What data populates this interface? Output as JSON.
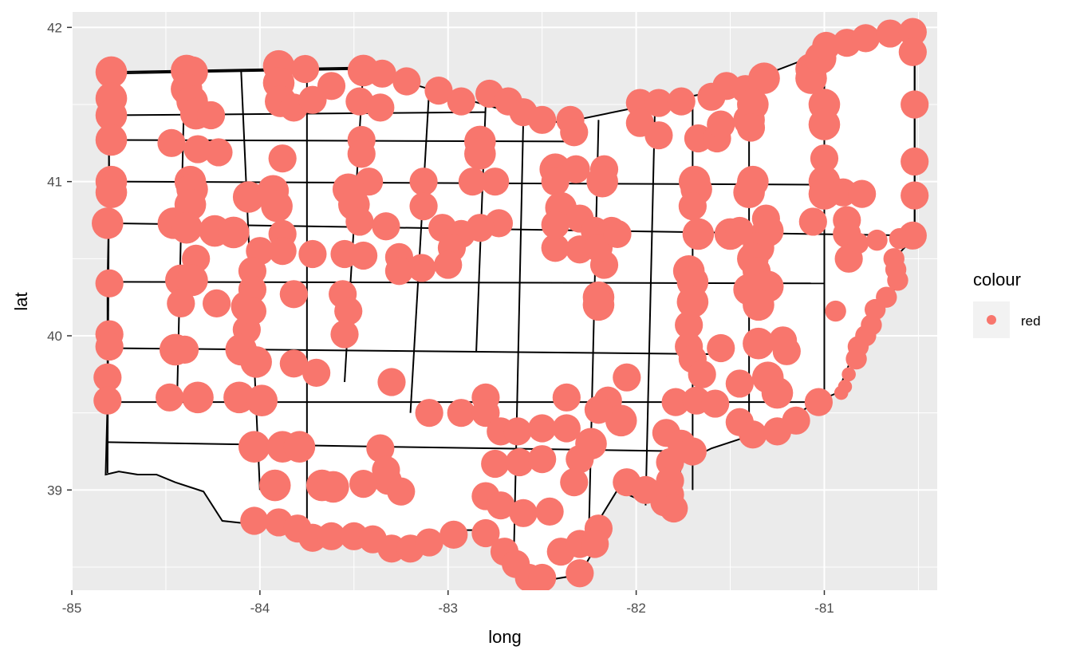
{
  "chart_data": {
    "type": "scatter",
    "title": "",
    "xlabel": "long",
    "ylabel": "lat",
    "xlim": [
      -85.0,
      -80.4
    ],
    "ylim": [
      38.35,
      42.1
    ],
    "x_ticks": [
      -85,
      -84,
      -83,
      -82,
      -81
    ],
    "y_ticks": [
      39,
      40,
      41,
      42
    ],
    "x_tick_labels": [
      "-85",
      "-84",
      "-83",
      "-82",
      "-81"
    ],
    "y_tick_labels": [
      "39",
      "40",
      "41",
      "42"
    ],
    "grid": true,
    "panel_background": "#ebebeb",
    "point_color": "#F8766D",
    "legend": {
      "title": "colour",
      "labels": [
        "red"
      ],
      "placement": "right"
    },
    "county_lines": [
      [
        [
          -84.82,
          41.71
        ],
        [
          -83.46,
          41.74
        ]
      ],
      [
        [
          -84.8,
          41.43
        ],
        [
          -82.8,
          41.45
        ]
      ],
      [
        [
          -84.8,
          41.27
        ],
        [
          -82.35,
          41.26
        ]
      ],
      [
        [
          -84.8,
          41.0
        ],
        [
          -81.0,
          40.98
        ]
      ],
      [
        [
          -84.8,
          40.73
        ],
        [
          -80.52,
          40.65
        ]
      ],
      [
        [
          -84.81,
          40.35
        ],
        [
          -81.0,
          40.34
        ]
      ],
      [
        [
          -84.8,
          39.92
        ],
        [
          -81.5,
          39.88
        ]
      ],
      [
        [
          -84.8,
          39.57
        ],
        [
          -81.0,
          39.57
        ]
      ],
      [
        [
          -84.81,
          39.31
        ],
        [
          -83.3,
          39.28
        ]
      ],
      [
        [
          -83.3,
          39.28
        ],
        [
          -81.7,
          39.25
        ]
      ],
      [
        [
          -84.8,
          41.71
        ],
        [
          -84.81,
          39.11
        ]
      ],
      [
        [
          -84.4,
          41.71
        ],
        [
          -84.44,
          39.6
        ]
      ],
      [
        [
          -84.1,
          41.72
        ],
        [
          -84.0,
          39.0
        ]
      ],
      [
        [
          -83.75,
          41.72
        ],
        [
          -83.75,
          38.7
        ]
      ],
      [
        [
          -83.45,
          41.74
        ],
        [
          -83.55,
          39.7
        ]
      ],
      [
        [
          -83.1,
          41.6
        ],
        [
          -83.2,
          39.5
        ]
      ],
      [
        [
          -82.8,
          41.5
        ],
        [
          -82.85,
          39.9
        ]
      ],
      [
        [
          -82.6,
          41.4
        ],
        [
          -82.65,
          38.6
        ]
      ],
      [
        [
          -82.2,
          41.4
        ],
        [
          -82.25,
          38.8
        ]
      ],
      [
        [
          -81.9,
          41.5
        ],
        [
          -81.95,
          38.9
        ]
      ],
      [
        [
          -81.7,
          41.5
        ],
        [
          -81.7,
          39.0
        ]
      ],
      [
        [
          -81.4,
          41.6
        ],
        [
          -81.4,
          39.4
        ]
      ],
      [
        [
          -81.0,
          41.9
        ],
        [
          -81.0,
          39.5
        ]
      ],
      [
        [
          -80.52,
          41.98
        ],
        [
          -80.52,
          40.64
        ]
      ]
    ],
    "points": [
      [
        -84.79,
        41.71,
        9
      ],
      [
        -84.79,
        41.54,
        9
      ],
      [
        -84.79,
        41.43,
        9
      ],
      [
        -84.79,
        41.27,
        9
      ],
      [
        -84.79,
        41.0,
        9
      ],
      [
        -84.79,
        40.93,
        9
      ],
      [
        -84.81,
        40.73,
        9
      ],
      [
        -84.8,
        40.34,
        8
      ],
      [
        -84.8,
        40.01,
        8
      ],
      [
        -84.8,
        39.93,
        8
      ],
      [
        -84.81,
        39.73,
        8
      ],
      [
        -84.81,
        39.58,
        8
      ],
      [
        -84.39,
        41.72,
        9
      ],
      [
        -84.36,
        41.71,
        9
      ],
      [
        -84.39,
        41.6,
        9
      ],
      [
        -84.36,
        41.52,
        9
      ],
      [
        -84.34,
        41.44,
        9
      ],
      [
        -84.26,
        41.43,
        8
      ],
      [
        -84.47,
        41.25,
        8
      ],
      [
        -84.33,
        41.21,
        8
      ],
      [
        -84.22,
        41.19,
        8
      ],
      [
        -84.37,
        41.0,
        9
      ],
      [
        -84.36,
        40.95,
        9
      ],
      [
        -84.37,
        40.85,
        9
      ],
      [
        -84.46,
        40.73,
        9
      ],
      [
        -84.39,
        40.7,
        9
      ],
      [
        -84.34,
        40.5,
        8
      ],
      [
        -84.24,
        40.68,
        9
      ],
      [
        -84.14,
        40.67,
        9
      ],
      [
        -84.06,
        40.9,
        9
      ],
      [
        -83.93,
        40.94,
        9
      ],
      [
        -83.91,
        40.84,
        9
      ],
      [
        -84.42,
        40.36,
        9
      ],
      [
        -84.36,
        40.36,
        9
      ],
      [
        -84.42,
        40.21,
        8
      ],
      [
        -84.23,
        40.21,
        8
      ],
      [
        -84.07,
        40.19,
        9
      ],
      [
        -84.07,
        40.04,
        8
      ],
      [
        -84.1,
        39.91,
        9
      ],
      [
        -84.02,
        39.83,
        9
      ],
      [
        -84.45,
        39.91,
        9
      ],
      [
        -84.4,
        39.91,
        8
      ],
      [
        -84.48,
        39.6,
        8
      ],
      [
        -84.33,
        39.6,
        9
      ],
      [
        -84.11,
        39.6,
        9
      ],
      [
        -83.99,
        39.58,
        9
      ],
      [
        -84.03,
        39.28,
        9
      ],
      [
        -83.88,
        39.28,
        9
      ],
      [
        -83.79,
        39.28,
        9
      ],
      [
        -83.92,
        39.03,
        9
      ],
      [
        -83.67,
        39.03,
        9
      ],
      [
        -83.61,
        39.02,
        9
      ],
      [
        -84.03,
        38.8,
        8
      ],
      [
        -83.9,
        38.79,
        8
      ],
      [
        -83.8,
        38.75,
        8
      ],
      [
        -83.72,
        38.69,
        8
      ],
      [
        -83.62,
        38.7,
        8
      ],
      [
        -83.5,
        38.7,
        8
      ],
      [
        -83.4,
        38.68,
        8
      ],
      [
        -83.3,
        38.62,
        8
      ],
      [
        -83.2,
        38.62,
        8
      ],
      [
        -83.1,
        38.66,
        8
      ],
      [
        -82.97,
        38.71,
        8
      ],
      [
        -83.9,
        41.75,
        9
      ],
      [
        -83.76,
        41.73,
        8
      ],
      [
        -83.9,
        41.64,
        9
      ],
      [
        -83.89,
        41.52,
        9
      ],
      [
        -83.82,
        41.48,
        8
      ],
      [
        -83.72,
        41.53,
        8
      ],
      [
        -83.62,
        41.62,
        8
      ],
      [
        -83.45,
        41.72,
        9
      ],
      [
        -83.35,
        41.7,
        8
      ],
      [
        -83.22,
        41.65,
        8
      ],
      [
        -83.05,
        41.59,
        8
      ],
      [
        -82.93,
        41.52,
        8
      ],
      [
        -82.78,
        41.57,
        8
      ],
      [
        -82.68,
        41.52,
        8
      ],
      [
        -82.6,
        41.45,
        8
      ],
      [
        -83.47,
        41.52,
        8
      ],
      [
        -83.36,
        41.48,
        8
      ],
      [
        -83.46,
        41.27,
        8
      ],
      [
        -83.46,
        41.18,
        8
      ],
      [
        -83.88,
        41.15,
        8
      ],
      [
        -83.42,
        41.0,
        8
      ],
      [
        -83.53,
        40.95,
        9
      ],
      [
        -83.5,
        40.85,
        9
      ],
      [
        -83.47,
        40.74,
        8
      ],
      [
        -83.33,
        40.71,
        8
      ],
      [
        -83.13,
        41.0,
        8
      ],
      [
        -83.13,
        40.84,
        8
      ],
      [
        -83.03,
        40.7,
        8
      ],
      [
        -83.88,
        40.66,
        8
      ],
      [
        -83.88,
        40.55,
        8
      ],
      [
        -84.0,
        40.55,
        8
      ],
      [
        -84.04,
        40.42,
        8
      ],
      [
        -84.04,
        40.3,
        8
      ],
      [
        -84.04,
        40.16,
        8
      ],
      [
        -83.72,
        40.53,
        8
      ],
      [
        -83.82,
        40.27,
        8
      ],
      [
        -83.55,
        40.53,
        8
      ],
      [
        -83.45,
        40.52,
        8
      ],
      [
        -83.56,
        40.27,
        8
      ],
      [
        -83.53,
        40.16,
        8
      ],
      [
        -83.55,
        40.01,
        8
      ],
      [
        -83.82,
        39.82,
        8
      ],
      [
        -83.7,
        39.76,
        8
      ],
      [
        -82.83,
        41.26,
        9
      ],
      [
        -82.83,
        41.18,
        9
      ],
      [
        -82.75,
        41.0,
        8
      ],
      [
        -82.87,
        41.0,
        8
      ],
      [
        -82.73,
        40.73,
        8
      ],
      [
        -82.83,
        40.7,
        8
      ],
      [
        -82.93,
        40.66,
        8
      ],
      [
        -82.98,
        40.57,
        8
      ],
      [
        -83.0,
        40.46,
        8
      ],
      [
        -83.26,
        40.51,
        8
      ],
      [
        -83.26,
        40.42,
        8
      ],
      [
        -83.14,
        40.44,
        8
      ],
      [
        -83.3,
        39.7,
        8
      ],
      [
        -83.1,
        39.5,
        8
      ],
      [
        -82.93,
        39.5,
        8
      ],
      [
        -82.8,
        39.6,
        8
      ],
      [
        -82.8,
        39.5,
        8
      ],
      [
        -82.72,
        39.38,
        8
      ],
      [
        -82.75,
        39.17,
        8
      ],
      [
        -82.63,
        39.38,
        8
      ],
      [
        -82.62,
        39.18,
        8
      ],
      [
        -82.5,
        39.4,
        8
      ],
      [
        -82.5,
        39.2,
        8
      ],
      [
        -82.37,
        39.6,
        8
      ],
      [
        -82.37,
        39.4,
        8
      ],
      [
        -82.3,
        39.2,
        8
      ],
      [
        -82.33,
        39.05,
        8
      ],
      [
        -82.8,
        38.96,
        8
      ],
      [
        -82.72,
        38.9,
        8
      ],
      [
        -82.6,
        38.85,
        8
      ],
      [
        -82.46,
        38.86,
        8
      ],
      [
        -83.36,
        39.27,
        8
      ],
      [
        -83.33,
        39.13,
        8
      ],
      [
        -83.32,
        39.06,
        8
      ],
      [
        -83.25,
        38.99,
        8
      ],
      [
        -83.45,
        39.04,
        8
      ],
      [
        -82.8,
        38.72,
        8
      ],
      [
        -82.7,
        38.6,
        8
      ],
      [
        -82.64,
        38.52,
        8
      ],
      [
        -82.57,
        38.43,
        8
      ],
      [
        -82.5,
        38.43,
        8
      ],
      [
        -82.4,
        38.6,
        8
      ],
      [
        -82.3,
        38.65,
        8
      ],
      [
        -82.3,
        38.46,
        8
      ],
      [
        -82.5,
        41.4,
        8
      ],
      [
        -82.35,
        41.4,
        8
      ],
      [
        -82.33,
        41.32,
        8
      ],
      [
        -82.43,
        41.08,
        9
      ],
      [
        -82.32,
        41.08,
        8
      ],
      [
        -82.17,
        41.08,
        8
      ],
      [
        -82.18,
        41.0,
        9
      ],
      [
        -82.43,
        41.0,
        8
      ],
      [
        -82.4,
        40.83,
        9
      ],
      [
        -82.3,
        40.76,
        8
      ],
      [
        -82.22,
        40.68,
        8
      ],
      [
        -82.13,
        40.68,
        8
      ],
      [
        -82.43,
        40.57,
        8
      ],
      [
        -82.3,
        40.56,
        8
      ],
      [
        -82.17,
        40.46,
        8
      ],
      [
        -82.43,
        40.72,
        8
      ],
      [
        -82.2,
        40.57,
        8
      ],
      [
        -82.1,
        40.66,
        8
      ],
      [
        -82.2,
        40.25,
        9
      ],
      [
        -82.2,
        40.2,
        9
      ],
      [
        -82.05,
        39.73,
        8
      ],
      [
        -82.15,
        39.58,
        8
      ],
      [
        -82.08,
        39.45,
        9
      ],
      [
        -82.2,
        39.52,
        8
      ],
      [
        -82.24,
        39.3,
        9
      ],
      [
        -82.05,
        39.05,
        8
      ],
      [
        -81.95,
        39.0,
        8
      ],
      [
        -81.85,
        38.92,
        8
      ],
      [
        -82.2,
        38.75,
        8
      ],
      [
        -82.22,
        38.65,
        8
      ],
      [
        -81.98,
        41.51,
        8
      ],
      [
        -81.88,
        41.51,
        8
      ],
      [
        -81.76,
        41.52,
        8
      ],
      [
        -81.6,
        41.55,
        8
      ],
      [
        -81.52,
        41.62,
        8
      ],
      [
        -81.42,
        41.6,
        8
      ],
      [
        -81.32,
        41.67,
        9
      ],
      [
        -81.07,
        41.73,
        9
      ],
      [
        -81.07,
        41.67,
        9
      ],
      [
        -81.02,
        41.8,
        9
      ],
      [
        -80.99,
        41.88,
        8
      ],
      [
        -80.88,
        41.9,
        8
      ],
      [
        -80.78,
        41.93,
        8
      ],
      [
        -80.65,
        41.96,
        8
      ],
      [
        -80.53,
        41.97,
        8
      ],
      [
        -80.53,
        41.84,
        8
      ],
      [
        -80.52,
        41.5,
        8
      ],
      [
        -80.52,
        41.13,
        8
      ],
      [
        -80.52,
        40.91,
        8
      ],
      [
        -80.53,
        40.65,
        8
      ],
      [
        -81.98,
        41.38,
        8
      ],
      [
        -81.88,
        41.3,
        8
      ],
      [
        -81.67,
        41.28,
        8
      ],
      [
        -81.57,
        41.28,
        8
      ],
      [
        -81.55,
        41.37,
        8
      ],
      [
        -81.4,
        41.4,
        9
      ],
      [
        -81.38,
        41.5,
        9
      ],
      [
        -81.39,
        41.35,
        8
      ],
      [
        -81.0,
        41.5,
        9
      ],
      [
        -81.0,
        41.37,
        9
      ],
      [
        -81.0,
        41.15,
        8
      ],
      [
        -81.0,
        41.0,
        9
      ],
      [
        -81.0,
        40.92,
        9
      ],
      [
        -80.9,
        40.93,
        8
      ],
      [
        -80.8,
        40.92,
        8
      ],
      [
        -81.06,
        40.74,
        8
      ],
      [
        -81.69,
        41.0,
        9
      ],
      [
        -81.68,
        40.95,
        9
      ],
      [
        -81.7,
        40.84,
        8
      ],
      [
        -81.38,
        41.0,
        9
      ],
      [
        -81.4,
        40.93,
        9
      ],
      [
        -81.67,
        40.66,
        9
      ],
      [
        -81.5,
        40.66,
        9
      ],
      [
        -81.45,
        40.68,
        8
      ],
      [
        -81.31,
        40.76,
        8
      ],
      [
        -81.3,
        40.68,
        9
      ],
      [
        -81.35,
        40.57,
        9
      ],
      [
        -81.38,
        40.5,
        9
      ],
      [
        -81.36,
        40.42,
        8
      ],
      [
        -80.88,
        40.75,
        8
      ],
      [
        -80.88,
        40.66,
        8
      ],
      [
        -80.87,
        40.5,
        8
      ],
      [
        -81.72,
        40.42,
        9
      ],
      [
        -81.7,
        40.35,
        9
      ],
      [
        -81.7,
        40.22,
        9
      ],
      [
        -81.72,
        40.07,
        8
      ],
      [
        -81.72,
        39.93,
        8
      ],
      [
        -81.7,
        39.85,
        8
      ],
      [
        -81.65,
        39.75,
        8
      ],
      [
        -81.55,
        39.92,
        8
      ],
      [
        -81.35,
        39.95,
        9
      ],
      [
        -81.22,
        39.97,
        8
      ],
      [
        -81.2,
        39.9,
        8
      ],
      [
        -81.3,
        39.73,
        9
      ],
      [
        -81.25,
        39.63,
        9
      ],
      [
        -81.45,
        39.69,
        8
      ],
      [
        -81.4,
        40.3,
        9
      ],
      [
        -81.3,
        40.32,
        9
      ],
      [
        -81.35,
        40.2,
        9
      ],
      [
        -81.79,
        39.57,
        8
      ],
      [
        -81.68,
        39.58,
        8
      ],
      [
        -81.58,
        39.56,
        8
      ],
      [
        -81.45,
        39.44,
        8
      ],
      [
        -81.38,
        39.36,
        8
      ],
      [
        -81.25,
        39.38,
        8
      ],
      [
        -81.15,
        39.45,
        8
      ],
      [
        -81.03,
        39.57,
        8
      ],
      [
        -81.84,
        39.37,
        8
      ],
      [
        -81.76,
        39.3,
        8
      ],
      [
        -81.7,
        39.25,
        8
      ],
      [
        -81.82,
        39.18,
        8
      ],
      [
        -81.82,
        39.06,
        8
      ],
      [
        -81.82,
        38.97,
        8
      ],
      [
        -81.8,
        38.88,
        8
      ],
      [
        -80.82,
        40.6,
        6
      ],
      [
        -80.72,
        40.62,
        6
      ],
      [
        -80.6,
        40.63,
        6
      ],
      [
        -80.63,
        40.5,
        6
      ],
      [
        -80.62,
        40.43,
        6
      ],
      [
        -80.61,
        40.36,
        6
      ],
      [
        -80.67,
        40.25,
        6
      ],
      [
        -80.73,
        40.17,
        6
      ],
      [
        -80.75,
        40.07,
        6
      ],
      [
        -80.78,
        40.0,
        6
      ],
      [
        -80.82,
        39.93,
        6
      ],
      [
        -80.83,
        39.85,
        6
      ],
      [
        -80.87,
        39.75,
        4
      ],
      [
        -80.89,
        39.67,
        4
      ],
      [
        -80.91,
        39.63,
        4
      ],
      [
        -80.94,
        40.16,
        6
      ]
    ]
  }
}
